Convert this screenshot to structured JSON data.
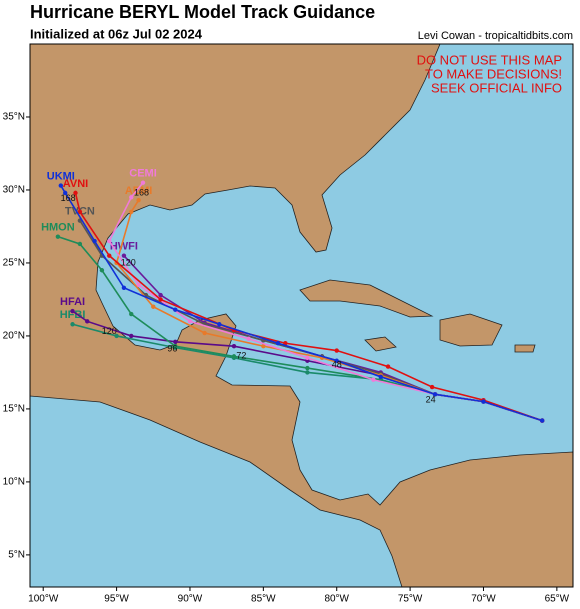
{
  "header": {
    "title": "Hurricane BERYL Model Track Guidance",
    "subtitle": "Initialized at 06z Jul 02 2024",
    "credit": "Levi Cowan - tropicaltidbits.com"
  },
  "warning": [
    "DO NOT USE THIS MAP",
    "TO MAKE DECISIONS!",
    "SEEK OFFICIAL INFO"
  ],
  "map": {
    "lonlim": [
      -100.9,
      -63.9
    ],
    "latlim": [
      2.8,
      40
    ],
    "lonticks": [
      {
        "value": -100,
        "label": "100°W"
      },
      {
        "value": -95,
        "label": "95°W"
      },
      {
        "value": -90,
        "label": "90°W"
      },
      {
        "value": -85,
        "label": "85°W"
      },
      {
        "value": -80,
        "label": "80°W"
      },
      {
        "value": -75,
        "label": "75°W"
      },
      {
        "value": -70,
        "label": "70°W"
      },
      {
        "value": -65,
        "label": "65°W"
      }
    ],
    "latticks": [
      {
        "value": 5,
        "label": "5°N"
      },
      {
        "value": 10,
        "label": "10°N"
      },
      {
        "value": 15,
        "label": "15°N"
      },
      {
        "value": 20,
        "label": "20°N"
      },
      {
        "value": 25,
        "label": "25°N"
      },
      {
        "value": 30,
        "label": "30°N"
      },
      {
        "value": 35,
        "label": "35°N"
      }
    ],
    "tracks": [
      {
        "name": "HFBI",
        "color": "#1a8a6a",
        "points": [
          [
            -66,
            14.2
          ],
          [
            -70,
            15.5
          ],
          [
            -73.3,
            16.0
          ],
          [
            -77,
            17.0
          ],
          [
            -82,
            17.5
          ],
          [
            -87,
            18.5
          ],
          [
            -91,
            19.2
          ],
          [
            -95,
            20.0
          ],
          [
            -98,
            20.8
          ]
        ]
      },
      {
        "name": "HFAI",
        "color": "#5a0a8a",
        "points": [
          [
            -66,
            14.2
          ],
          [
            -70,
            15.5
          ],
          [
            -73.3,
            16.0
          ],
          [
            -77,
            17.3
          ],
          [
            -82,
            18.3
          ],
          [
            -87,
            19.3
          ],
          [
            -91,
            19.6
          ],
          [
            -94,
            20.0
          ],
          [
            -97,
            21.0
          ],
          [
            -98,
            21.7
          ]
        ]
      },
      {
        "name": "HMON",
        "color": "#1e8c5a",
        "points": [
          [
            -66,
            14.2
          ],
          [
            -70,
            15.5
          ],
          [
            -73.3,
            16.0
          ],
          [
            -77,
            17.0
          ],
          [
            -82,
            17.8
          ],
          [
            -87,
            18.6
          ],
          [
            -91,
            19.3
          ],
          [
            -94,
            21.5
          ],
          [
            -96,
            24.5
          ],
          [
            -97.5,
            26.3
          ],
          [
            -99,
            26.8
          ]
        ]
      },
      {
        "name": "HWFI",
        "color": "#6a1a9a",
        "points": [
          [
            -66,
            14.2
          ],
          [
            -70,
            15.5
          ],
          [
            -73.3,
            16.0
          ],
          [
            -77,
            17.5
          ],
          [
            -81,
            18.6
          ],
          [
            -85,
            19.7
          ],
          [
            -89,
            20.9
          ],
          [
            -92,
            22.8
          ],
          [
            -94.5,
            25.5
          ]
        ]
      },
      {
        "name": "TVCN",
        "color": "#555555",
        "points": [
          [
            -66,
            14.2
          ],
          [
            -70,
            15.5
          ],
          [
            -73.3,
            16.0
          ],
          [
            -77,
            17.4
          ],
          [
            -81,
            18.6
          ],
          [
            -85,
            19.7
          ],
          [
            -89,
            20.8
          ],
          [
            -93,
            22.8
          ],
          [
            -96,
            25.5
          ],
          [
            -97.5,
            27.9
          ]
        ]
      },
      {
        "name": "AEMI",
        "color": "#e87a2a",
        "points": [
          [
            -66,
            14.2
          ],
          [
            -70,
            15.5
          ],
          [
            -73.3,
            16.0
          ],
          [
            -77,
            17.3
          ],
          [
            -81,
            18.5
          ],
          [
            -85,
            19.3
          ],
          [
            -89,
            20.2
          ],
          [
            -92.5,
            22.0
          ],
          [
            -95,
            25.0
          ],
          [
            -94,
            28.5
          ],
          [
            -93.5,
            29.3
          ]
        ]
      },
      {
        "name": "CEMI",
        "color": "#f07ad8",
        "points": [
          [
            -66,
            14.2
          ],
          [
            -70,
            15.5
          ],
          [
            -73.3,
            16.0
          ],
          [
            -77.5,
            17.0
          ],
          [
            -82,
            18.5
          ],
          [
            -86,
            19.8
          ],
          [
            -90,
            21.0
          ],
          [
            -93.5,
            23.5
          ],
          [
            -95.5,
            26.5
          ],
          [
            -94,
            29.5
          ],
          [
            -93.2,
            30.5
          ]
        ]
      },
      {
        "name": "AVNI",
        "color": "#e01010",
        "points": [
          [
            -66,
            14.2
          ],
          [
            -70,
            15.6
          ],
          [
            -73.5,
            16.5
          ],
          [
            -76.5,
            17.9
          ],
          [
            -80,
            19.0
          ],
          [
            -83.5,
            19.5
          ],
          [
            -87,
            20.4
          ],
          [
            -92,
            22.5
          ],
          [
            -95.5,
            25.5
          ],
          [
            -97.5,
            28.5
          ],
          [
            -97.8,
            29.8
          ]
        ]
      },
      {
        "name": "UKMI",
        "color": "#1030d8",
        "points": [
          [
            -66,
            14.2
          ],
          [
            -70,
            15.5
          ],
          [
            -73.3,
            16.0
          ],
          [
            -77,
            17.2
          ],
          [
            -80,
            18.3
          ],
          [
            -84,
            19.5
          ],
          [
            -88,
            20.8
          ],
          [
            -91,
            21.8
          ],
          [
            -94.5,
            23.3
          ],
          [
            -96.5,
            26.5
          ],
          [
            -98.5,
            29.8
          ],
          [
            -98.8,
            30.3
          ]
        ]
      }
    ],
    "hour_labels": [
      {
        "label": "24",
        "lon": -73.6,
        "lat": 15.6
      },
      {
        "label": "48",
        "lon": -80,
        "lat": 18.0
      },
      {
        "label": "72",
        "lon": -86.5,
        "lat": 18.6
      },
      {
        "label": "96",
        "lon": -91.2,
        "lat": 19.1
      },
      {
        "label": "120",
        "lon": -95.5,
        "lat": 20.3
      },
      {
        "label": "120",
        "lon": -94.2,
        "lat": 25.0
      },
      {
        "label": "168",
        "lon": -93.3,
        "lat": 29.8
      },
      {
        "label": "168",
        "lon": -98.3,
        "lat": 29.4
      }
    ]
  }
}
